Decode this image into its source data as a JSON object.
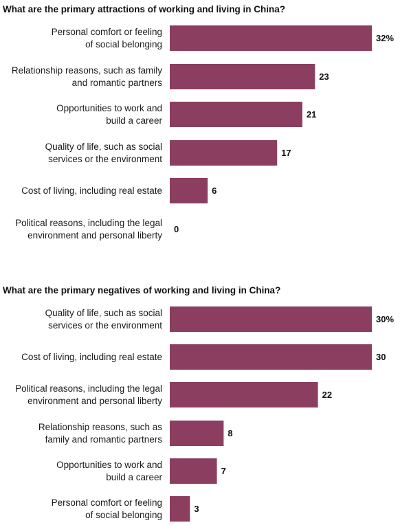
{
  "chart_data": [
    {
      "type": "bar",
      "orientation": "horizontal",
      "title": "What are the primary attractions of working and living in China?",
      "categories": [
        [
          "Personal comfort or feeling",
          "of social belonging"
        ],
        [
          "Relationship reasons, such as family",
          "and romantic partners"
        ],
        [
          "Opportunities to work and",
          "build a career"
        ],
        [
          "Quality of life, such as social",
          "services or the environment"
        ],
        [
          "Cost of living, including real estate"
        ],
        [
          "Political reasons, including the legal",
          "environment and personal liberty"
        ]
      ],
      "values": [
        32,
        23,
        21,
        17,
        6,
        0
      ],
      "value_labels": [
        "32%",
        "23",
        "21",
        "17",
        "6",
        "0"
      ],
      "xlim": [
        0,
        32
      ],
      "grid": false,
      "bar_color": "#8B3E5F"
    },
    {
      "type": "bar",
      "orientation": "horizontal",
      "title": "What are the primary negatives of working and living in China?",
      "categories": [
        [
          "Quality of life, such as social",
          "services or the environment"
        ],
        [
          "Cost of living, including real estate"
        ],
        [
          "Political reasons, including the legal",
          "environment and personal liberty"
        ],
        [
          "Relationship reasons, such as",
          "family and romantic partners"
        ],
        [
          "Opportunities to work and",
          "build a career"
        ],
        [
          "Personal comfort or feeling",
          "of social belonging"
        ]
      ],
      "values": [
        30,
        30,
        22,
        8,
        7,
        3
      ],
      "value_labels": [
        "30%",
        "30",
        "22",
        "8",
        "7",
        "3"
      ],
      "xlim": [
        0,
        30
      ],
      "grid": false,
      "bar_color": "#8B3E5F"
    }
  ]
}
